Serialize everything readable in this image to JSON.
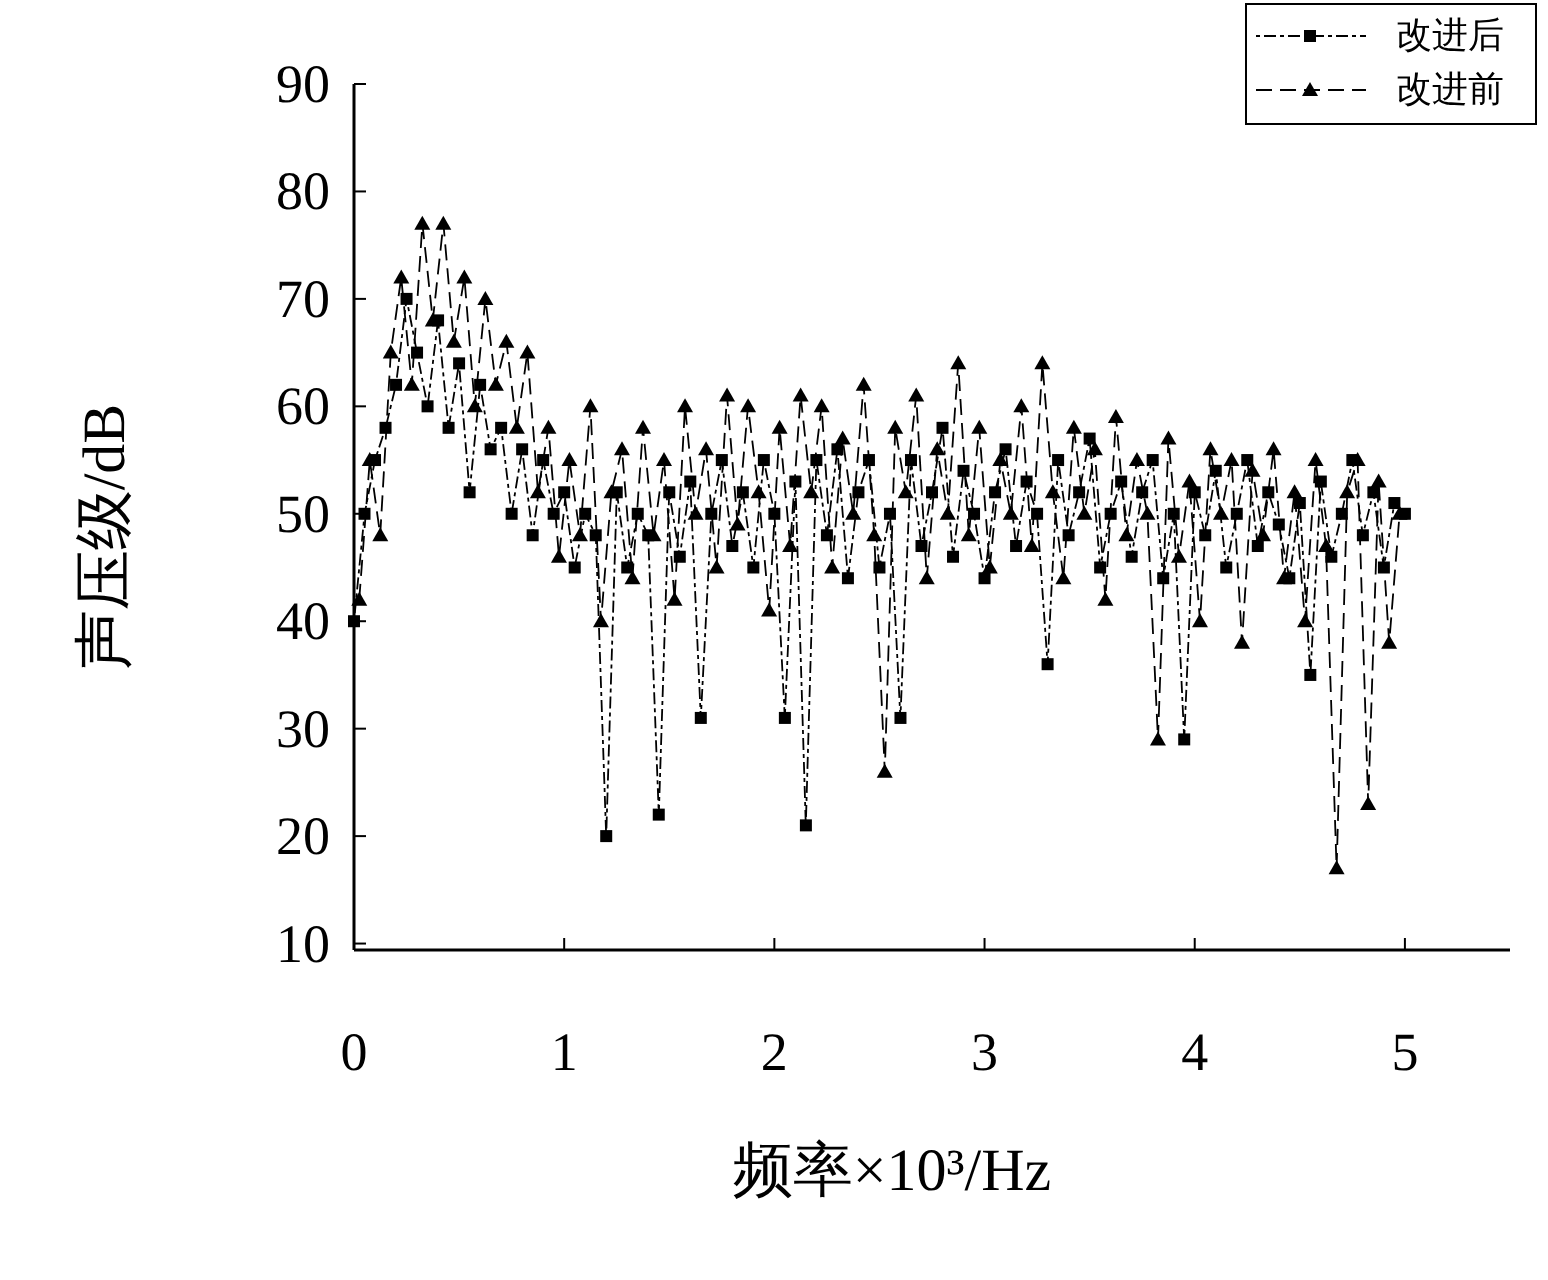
{
  "chart_data": {
    "type": "line",
    "xlabel": "频率×10³/Hz",
    "ylabel": "声压级/dB",
    "xlim": [
      0,
      5.5
    ],
    "xticks": [
      0,
      1,
      2,
      3,
      4,
      5
    ],
    "ylim": [
      9.4,
      90
    ],
    "yticks": [
      10,
      20,
      30,
      40,
      50,
      60,
      70,
      80,
      90
    ],
    "legend": "top right",
    "series": [
      {
        "name": "改进后",
        "color": "#000000",
        "marker": "square",
        "line_style": "dotted",
        "x": [
          0,
          0.05,
          0.1,
          0.15,
          0.2,
          0.25,
          0.3,
          0.35,
          0.4,
          0.45,
          0.5,
          0.55,
          0.6,
          0.65,
          0.7,
          0.75,
          0.8,
          0.85,
          0.9,
          0.95,
          1.0,
          1.05,
          1.1,
          1.15,
          1.2,
          1.25,
          1.3,
          1.35,
          1.4,
          1.45,
          1.5,
          1.55,
          1.6,
          1.65,
          1.7,
          1.75,
          1.8,
          1.85,
          1.9,
          1.95,
          2.0,
          2.05,
          2.1,
          2.15,
          2.2,
          2.25,
          2.3,
          2.35,
          2.4,
          2.45,
          2.5,
          2.55,
          2.6,
          2.65,
          2.7,
          2.75,
          2.8,
          2.85,
          2.9,
          2.95,
          3.0,
          3.05,
          3.1,
          3.15,
          3.2,
          3.25,
          3.3,
          3.35,
          3.4,
          3.45,
          3.5,
          3.55,
          3.6,
          3.65,
          3.7,
          3.75,
          3.8,
          3.85,
          3.9,
          3.95,
          4.0,
          4.05,
          4.1,
          4.15,
          4.2,
          4.25,
          4.3,
          4.35,
          4.4,
          4.45,
          4.5,
          4.55,
          4.6,
          4.65,
          4.7,
          4.75,
          4.8,
          4.85,
          4.9,
          4.95,
          5.0
        ],
        "values": [
          40,
          50,
          55,
          58,
          62,
          70,
          65,
          60,
          68,
          58,
          64,
          52,
          62,
          56,
          58,
          50,
          56,
          48,
          55,
          50,
          52,
          45,
          50,
          48,
          20,
          52,
          45,
          50,
          48,
          22,
          52,
          46,
          53,
          31,
          50,
          55,
          47,
          52,
          45,
          55,
          50,
          31,
          53,
          21,
          55,
          48,
          56,
          44,
          52,
          55,
          45,
          50,
          31,
          55,
          47,
          52,
          58,
          46,
          54,
          50,
          44,
          52,
          56,
          47,
          53,
          50,
          36,
          55,
          48,
          52,
          57,
          45,
          50,
          53,
          46,
          52,
          55,
          44,
          50,
          29,
          52,
          48,
          54,
          45,
          50,
          55,
          47,
          52,
          49,
          44,
          51,
          35,
          53,
          46,
          50,
          55,
          48,
          52,
          45,
          51,
          50
        ]
      },
      {
        "name": "改进前",
        "color": "#000000",
        "marker": "triangle",
        "line_style": "dashed",
        "x": [
          0.025,
          0.075,
          0.125,
          0.175,
          0.225,
          0.275,
          0.325,
          0.375,
          0.425,
          0.475,
          0.525,
          0.575,
          0.625,
          0.675,
          0.725,
          0.775,
          0.825,
          0.875,
          0.925,
          0.975,
          1.025,
          1.075,
          1.125,
          1.175,
          1.225,
          1.275,
          1.325,
          1.375,
          1.425,
          1.475,
          1.525,
          1.575,
          1.625,
          1.675,
          1.725,
          1.775,
          1.825,
          1.875,
          1.925,
          1.975,
          2.025,
          2.075,
          2.125,
          2.175,
          2.225,
          2.275,
          2.325,
          2.375,
          2.425,
          2.475,
          2.525,
          2.575,
          2.625,
          2.675,
          2.725,
          2.775,
          2.825,
          2.875,
          2.925,
          2.975,
          3.025,
          3.075,
          3.125,
          3.175,
          3.225,
          3.275,
          3.325,
          3.375,
          3.425,
          3.475,
          3.525,
          3.575,
          3.625,
          3.675,
          3.725,
          3.775,
          3.825,
          3.875,
          3.925,
          3.975,
          4.025,
          4.075,
          4.125,
          4.175,
          4.225,
          4.275,
          4.325,
          4.375,
          4.425,
          4.475,
          4.525,
          4.575,
          4.625,
          4.675,
          4.725,
          4.775,
          4.825,
          4.875,
          4.925,
          4.975
        ],
        "values": [
          42,
          55,
          48,
          65,
          72,
          62,
          77,
          68,
          77,
          66,
          72,
          60,
          70,
          62,
          66,
          58,
          65,
          52,
          58,
          46,
          55,
          48,
          60,
          40,
          52,
          56,
          44,
          58,
          48,
          55,
          42,
          60,
          50,
          56,
          45,
          61,
          49,
          60,
          52,
          41,
          58,
          47,
          61,
          52,
          60,
          45,
          57,
          50,
          62,
          48,
          26,
          58,
          52,
          61,
          44,
          56,
          50,
          64,
          48,
          58,
          45,
          55,
          50,
          60,
          47,
          64,
          52,
          44,
          58,
          50,
          56,
          42,
          59,
          48,
          55,
          50,
          29,
          57,
          46,
          53,
          40,
          56,
          50,
          55,
          38,
          54,
          48,
          56,
          44,
          52,
          40,
          55,
          47,
          17,
          52,
          55,
          23,
          53,
          38,
          50
        ]
      }
    ]
  }
}
